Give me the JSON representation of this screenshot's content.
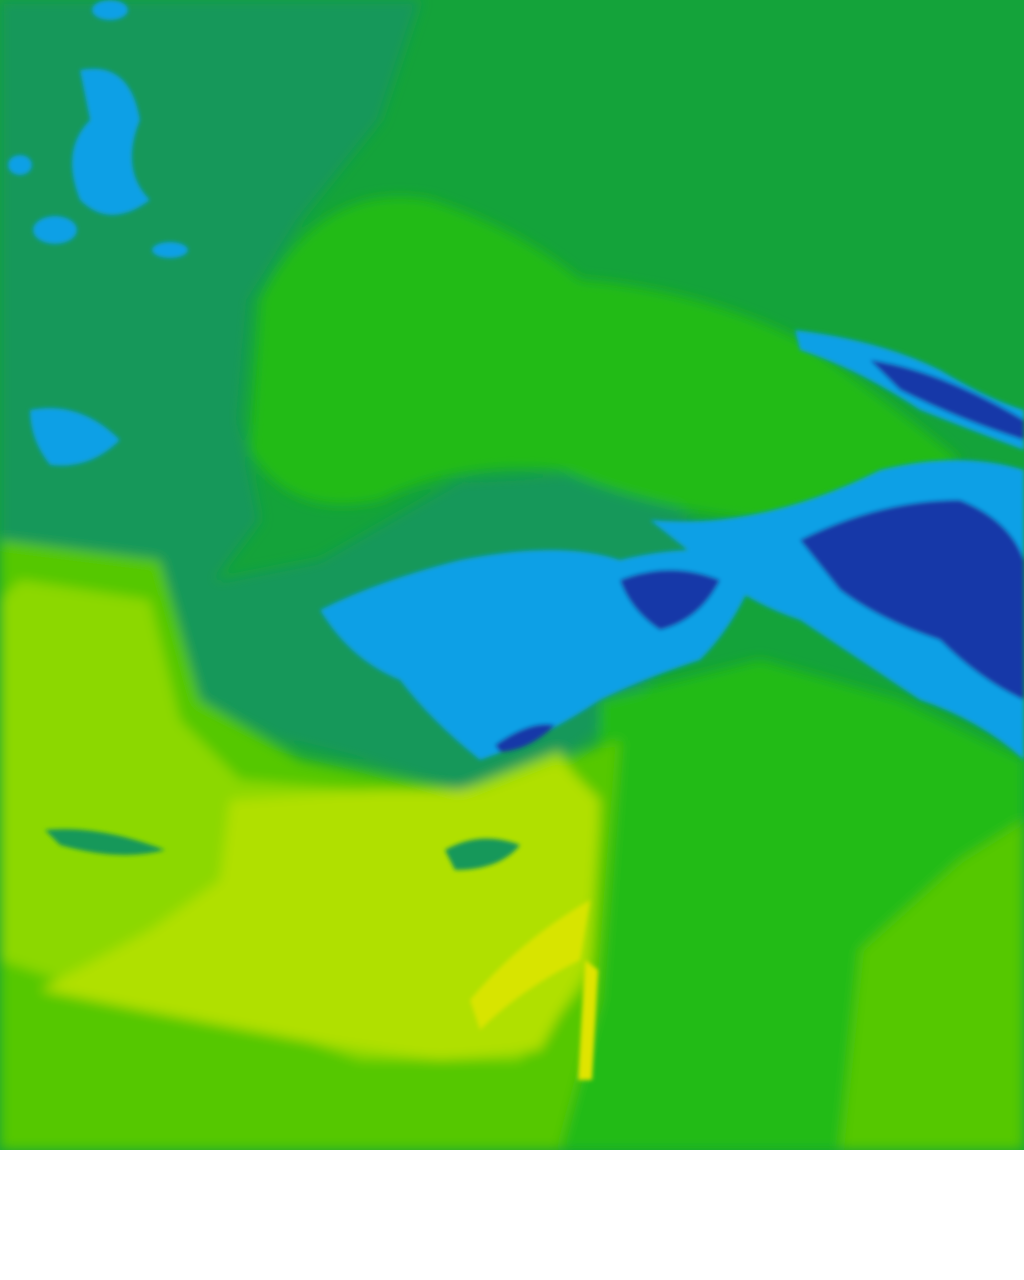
{
  "map": {
    "type": "raster-field",
    "colors": {
      "base_dark_green": "#14a33a",
      "teal_green": "#12985a",
      "bright_green": "#22bb14",
      "mid_green": "#55c800",
      "lime": "#8cd800",
      "yellow_lime": "#b0e000",
      "yellow": "#d8e400",
      "light_blue": "#0aa0e6",
      "dark_blue": "#1838a8"
    }
  }
}
